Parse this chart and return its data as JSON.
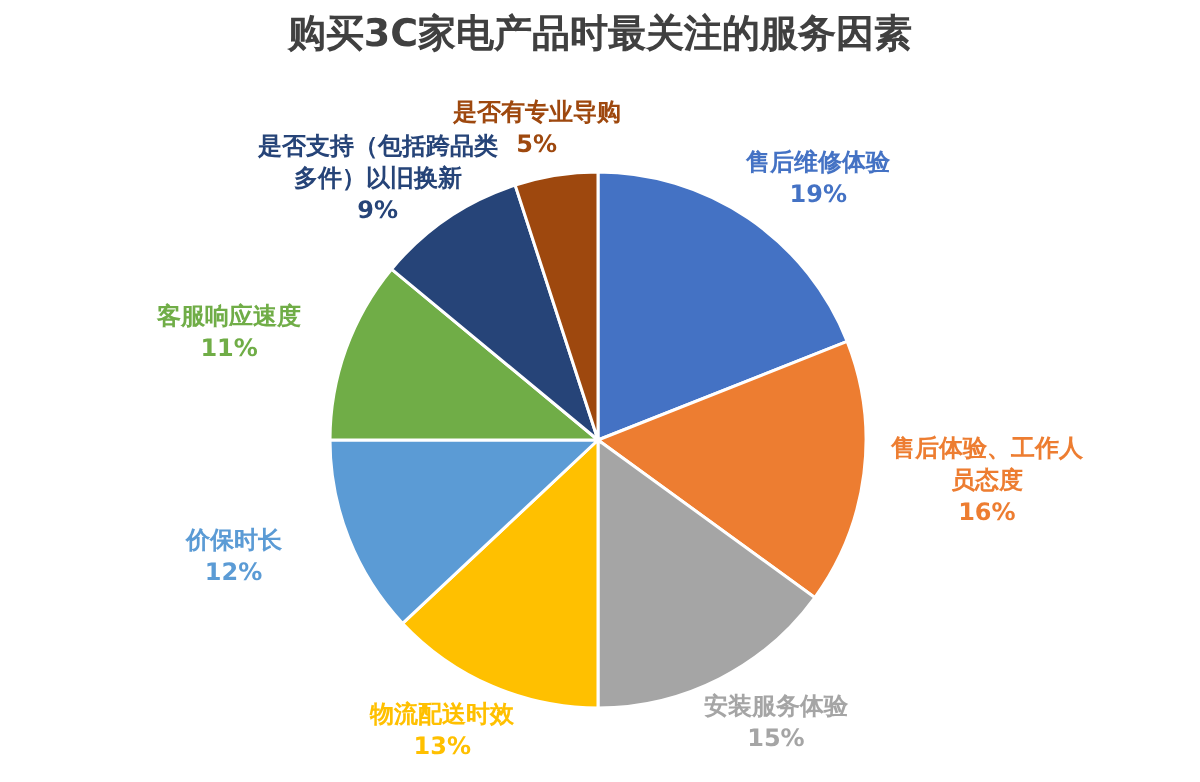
{
  "chart_data": {
    "type": "pie",
    "title": "购买3C家电产品时最关注的服务因素",
    "categories": [
      "售后维修体验",
      "售后体验、工作人员态度",
      "安装服务体验",
      "物流配送时效",
      "价保时长",
      "客服响应速度",
      "是否支持（包括跨品类多件）以旧换新",
      "是否有专业导购"
    ],
    "values": [
      19,
      16,
      15,
      13,
      12,
      11,
      9,
      5
    ],
    "value_labels": [
      "19%",
      "16%",
      "15%",
      "13%",
      "12%",
      "11%",
      "9%",
      "5%"
    ],
    "colors": [
      "#4472c4",
      "#ed7d31",
      "#a5a5a5",
      "#ffc000",
      "#5b9bd5",
      "#70ad47",
      "#264478",
      "#9e480e"
    ]
  }
}
